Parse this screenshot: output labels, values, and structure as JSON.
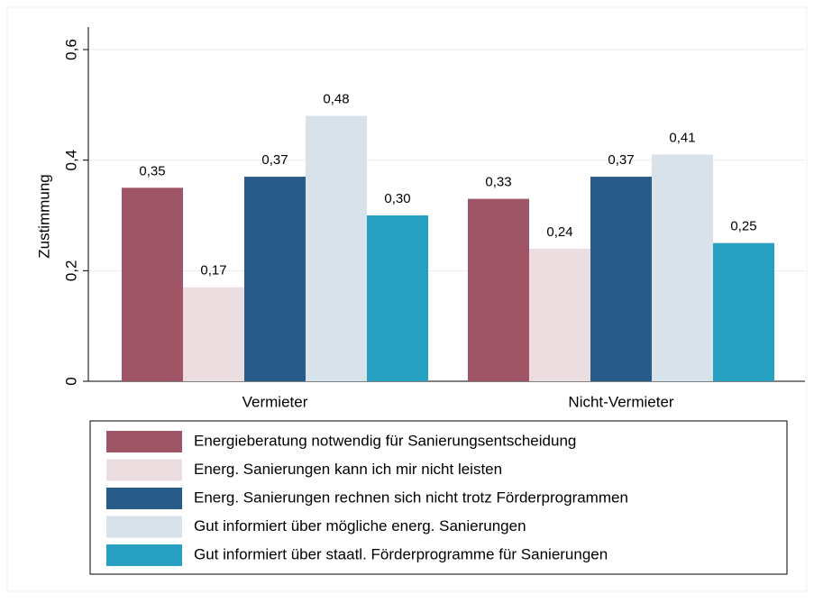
{
  "chart_data": {
    "type": "bar",
    "y_label": "Zustimmung",
    "categories": [
      "Vermieter",
      "Nicht-Vermieter"
    ],
    "series": [
      {
        "name": "Energieberatung notwendig für Sanierungsentscheidung",
        "color": "#a05566",
        "values": [
          0.35,
          0.33
        ],
        "value_labels": [
          "0,35",
          "0,33"
        ]
      },
      {
        "name": "Energ. Sanierungen kann ich mir nicht leisten",
        "color": "#ecdde1",
        "values": [
          0.17,
          0.24
        ],
        "value_labels": [
          "0,17",
          "0,24"
        ]
      },
      {
        "name": "Energ. Sanierungen rechnen sich nicht trotz Förderprogrammen",
        "color": "#275c8a",
        "values": [
          0.37,
          0.37
        ],
        "value_labels": [
          "0,37",
          "0,37"
        ]
      },
      {
        "name": "Gut informiert über mögliche energ. Sanierungen",
        "color": "#d8e2ea",
        "values": [
          0.48,
          0.41
        ],
        "value_labels": [
          "0,48",
          "0,41"
        ]
      },
      {
        "name": "Gut informiert über staatl. Förderprogramme für Sanierungen",
        "color": "#27a0c1",
        "values": [
          0.3,
          0.25
        ],
        "value_labels": [
          "0,30",
          "0,25"
        ]
      }
    ],
    "ylim": [
      0,
      0.6
    ],
    "yticks": [
      0,
      {
        "value": 0.2,
        "label": "0,2"
      },
      {
        "value": 0.4,
        "label": "0,4"
      },
      {
        "value": 0.6,
        "label": "0,6"
      }
    ],
    "grid": true
  }
}
